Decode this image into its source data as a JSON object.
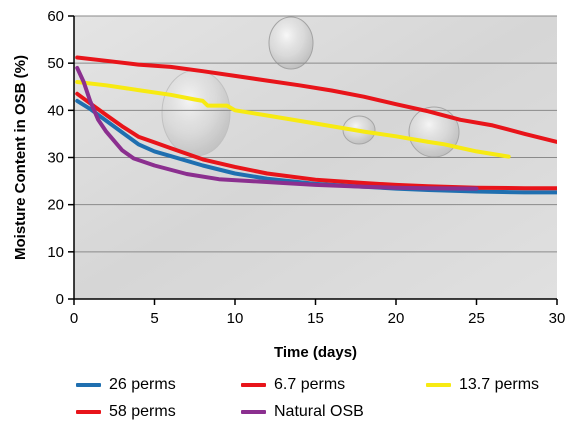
{
  "chart_data": {
    "type": "line",
    "title": "",
    "xlabel": "Time (days)",
    "ylabel": "Moisture Content in OSB (%)",
    "xlim": [
      0,
      30
    ],
    "ylim": [
      0,
      60
    ],
    "x_ticks": [
      "0",
      "5",
      "10",
      "15",
      "20",
      "25",
      "30"
    ],
    "y_ticks": [
      "0",
      "10",
      "20",
      "30",
      "40",
      "50",
      "60"
    ],
    "grid": "horizontal",
    "legend_position": "bottom",
    "series": [
      {
        "name": "26 perms",
        "color": "#1f6fb0",
        "points": [
          [
            0.2,
            42
          ],
          [
            1,
            40.3
          ],
          [
            2,
            37.8
          ],
          [
            3,
            35.3
          ],
          [
            4,
            32.8
          ],
          [
            5,
            31.3
          ],
          [
            6,
            30.3
          ],
          [
            8,
            28.3
          ],
          [
            10,
            26.6
          ],
          [
            12,
            25.5
          ],
          [
            15,
            24.4
          ],
          [
            18,
            23.8
          ],
          [
            20,
            23.4
          ],
          [
            22,
            23.1
          ],
          [
            25,
            22.8
          ],
          [
            28,
            22.6
          ],
          [
            30,
            22.6
          ]
        ]
      },
      {
        "name": "6.7 perms",
        "color": "#e8141a",
        "points": [
          [
            0.2,
            43.5
          ],
          [
            1,
            41.5
          ],
          [
            2,
            39
          ],
          [
            3,
            36.6
          ],
          [
            4,
            34.4
          ],
          [
            5,
            33.2
          ],
          [
            6,
            32
          ],
          [
            8,
            29.6
          ],
          [
            10,
            28
          ],
          [
            12,
            26.6
          ],
          [
            15,
            25.3
          ],
          [
            18,
            24.6
          ],
          [
            20,
            24.2
          ],
          [
            22,
            23.9
          ],
          [
            25,
            23.6
          ],
          [
            28,
            23.5
          ],
          [
            30,
            23.5
          ]
        ]
      },
      {
        "name": "13.7 perms",
        "color": "#f7ea12",
        "points": [
          [
            0.2,
            46
          ],
          [
            2,
            45.3
          ],
          [
            4,
            44.3
          ],
          [
            6,
            43.3
          ],
          [
            7.5,
            42.3
          ],
          [
            8,
            42
          ],
          [
            8.3,
            41
          ],
          [
            9.5,
            41
          ],
          [
            10,
            40
          ],
          [
            12,
            38.9
          ],
          [
            15,
            37.2
          ],
          [
            18,
            35.5
          ],
          [
            20,
            34.5
          ],
          [
            22,
            33.3
          ],
          [
            23,
            32.8
          ],
          [
            25,
            31.3
          ],
          [
            27,
            30.2
          ]
        ]
      },
      {
        "name": "58 perms",
        "color": "#e8141a",
        "points": [
          [
            0.2,
            51.2
          ],
          [
            2,
            50.5
          ],
          [
            4,
            49.7
          ],
          [
            6,
            49.2
          ],
          [
            8,
            48.3
          ],
          [
            10,
            47.3
          ],
          [
            12,
            46.3
          ],
          [
            14,
            45.3
          ],
          [
            16,
            44.2
          ],
          [
            18,
            42.9
          ],
          [
            20,
            41.3
          ],
          [
            22,
            39.8
          ],
          [
            24,
            38
          ],
          [
            26,
            36.8
          ],
          [
            28,
            35
          ],
          [
            30,
            33.3
          ]
        ]
      },
      {
        "name": "Natural OSB",
        "color": "#8b2f8f",
        "points": [
          [
            0.2,
            49
          ],
          [
            0.6,
            46
          ],
          [
            1,
            42
          ],
          [
            1.5,
            38
          ],
          [
            2,
            35.5
          ],
          [
            3,
            31.5
          ],
          [
            3.7,
            29.8
          ],
          [
            5,
            28.3
          ],
          [
            7,
            26.5
          ],
          [
            9,
            25.4
          ],
          [
            11,
            25
          ],
          [
            13,
            24.6
          ],
          [
            15,
            24.2
          ],
          [
            18,
            23.8
          ],
          [
            20,
            23.6
          ],
          [
            22,
            23.5
          ],
          [
            25,
            23.4
          ]
        ]
      }
    ],
    "legend_order": [
      [
        "26 perms",
        "6.7 perms",
        "13.7 perms"
      ],
      [
        "58 perms",
        "Natural OSB"
      ]
    ],
    "colors": {
      "plot_background": "#dcdcdc",
      "grid": "#8a8a8a",
      "axis": "#000000"
    }
  }
}
